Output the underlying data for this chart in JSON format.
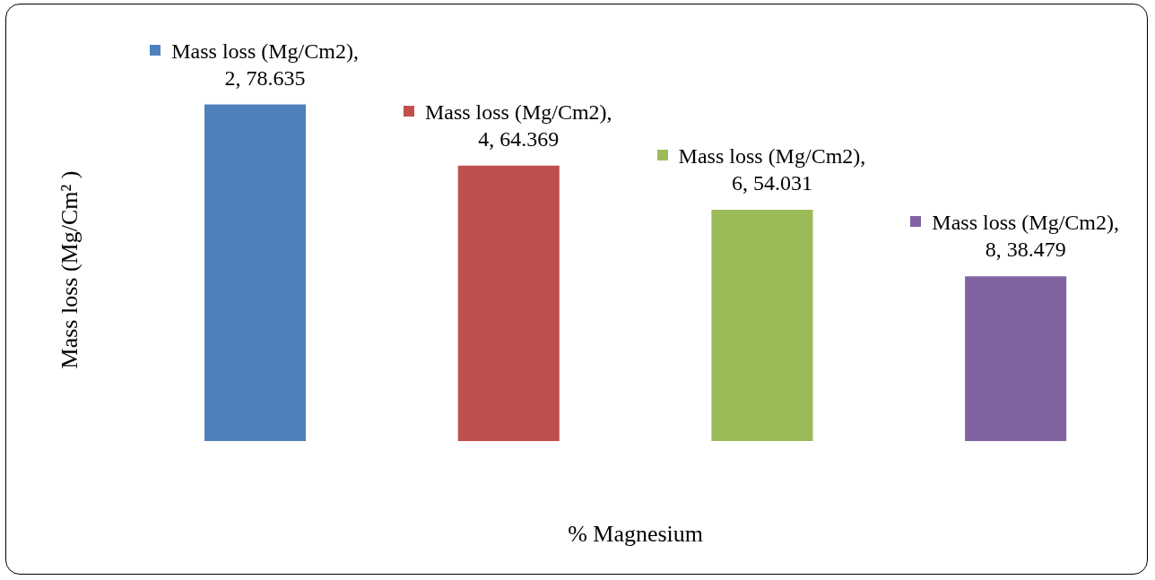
{
  "chart_data": {
    "type": "bar",
    "xlabel": "% Magnesium",
    "ylabel": "Mass loss (Mg/Cm² )",
    "categories": [
      null,
      null,
      null,
      null
    ],
    "values": [
      78.635,
      64.369,
      54.031,
      38.479
    ],
    "colors": [
      "#4f81bd",
      "#c0504d",
      "#9bbb59",
      "#8064a2"
    ],
    "value_labels": [
      "Mass loss (Mg/Cm2),\n2, 78.635",
      "Mass loss (Mg/Cm2),\n4, 64.369",
      "Mass loss (Mg/Cm2),\n6, 54.031",
      "Mass loss (Mg/Cm2),\n8, 38.479"
    ],
    "grid": false,
    "legend": false
  }
}
